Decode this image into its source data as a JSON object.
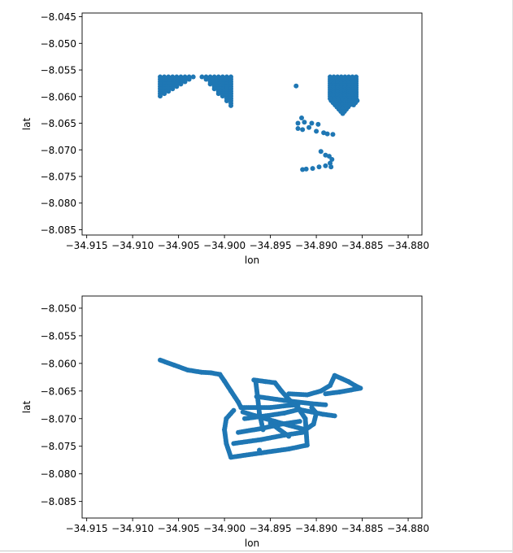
{
  "colors": {
    "marker": "#1f77b4",
    "axis": "#000000",
    "background": "#ffffff"
  },
  "chart_data": [
    {
      "type": "scatter",
      "title": "",
      "xlabel": "lon",
      "ylabel": "lat",
      "xlim": [
        -34.9155,
        -34.8785
      ],
      "ylim": [
        -8.086,
        -8.0443
      ],
      "xticks": [
        -34.915,
        -34.91,
        -34.905,
        -34.9,
        -34.895,
        -34.89,
        -34.885,
        -34.88
      ],
      "xtick_labels": [
        "−34.915",
        "−34.910",
        "−34.905",
        "−34.900",
        "−34.895",
        "−34.890",
        "−34.885",
        "−34.880"
      ],
      "yticks": [
        -8.045,
        -8.05,
        -8.055,
        -8.06,
        -8.065,
        -8.07,
        -8.075,
        -8.08,
        -8.085
      ],
      "ytick_labels": [
        "−8.045",
        "−8.050",
        "−8.055",
        "−8.060",
        "−8.065",
        "−8.070",
        "−8.075",
        "−8.080",
        "−8.085"
      ],
      "clusters": [
        {
          "kind": "triangle_grid",
          "corner_right_angle": [
            -34.907,
            -8.0563
          ],
          "x_extent": [
            -34.907,
            -34.9033
          ],
          "y_extent": [
            -8.06,
            -8.0563
          ]
        },
        {
          "kind": "triangle_grid",
          "corner_right_angle": [
            -34.8993,
            -8.0563
          ],
          "x_extent": [
            -34.9025,
            -34.8993
          ],
          "y_extent": [
            -8.0618,
            -8.0563
          ]
        },
        {
          "kind": "grid_with_taper",
          "x_extent": [
            -34.8885,
            -34.8853
          ],
          "y_extent": [
            -8.064,
            -8.0563
          ]
        }
      ],
      "points": [
        [
          -34.8922,
          -8.058
        ],
        [
          -34.8916,
          -8.064
        ],
        [
          -34.892,
          -8.065
        ],
        [
          -34.8913,
          -8.0648
        ],
        [
          -34.8905,
          -8.065
        ],
        [
          -34.8898,
          -8.0652
        ],
        [
          -34.892,
          -8.066
        ],
        [
          -34.8915,
          -8.0662
        ],
        [
          -34.8908,
          -8.0658
        ],
        [
          -34.89,
          -8.0665
        ],
        [
          -34.8892,
          -8.0668
        ],
        [
          -34.8888,
          -8.067
        ],
        [
          -34.8882,
          -8.0671
        ],
        [
          -34.8895,
          -8.0703
        ],
        [
          -34.889,
          -8.071
        ],
        [
          -34.8886,
          -8.0712
        ],
        [
          -34.8883,
          -8.0718
        ],
        [
          -34.8885,
          -8.0725
        ],
        [
          -34.8884,
          -8.0732
        ],
        [
          -34.889,
          -8.073
        ],
        [
          -34.8897,
          -8.0732
        ],
        [
          -34.8904,
          -8.0735
        ],
        [
          -34.8911,
          -8.0736
        ],
        [
          -34.8915,
          -8.0737
        ]
      ]
    },
    {
      "type": "scatter",
      "title": "",
      "xlabel": "lon",
      "ylabel": "lat",
      "xlim": [
        -34.9155,
        -34.8785
      ],
      "ylim": [
        -8.088,
        -8.0478
      ],
      "xticks": [
        -34.915,
        -34.91,
        -34.905,
        -34.9,
        -34.895,
        -34.89,
        -34.885,
        -34.88
      ],
      "xtick_labels": [
        "−34.915",
        "−34.910",
        "−34.905",
        "−34.900",
        "−34.895",
        "−34.890",
        "−34.885",
        "−34.880"
      ],
      "yticks": [
        -8.05,
        -8.055,
        -8.06,
        -8.065,
        -8.07,
        -8.075,
        -8.08,
        -8.085
      ],
      "ytick_labels": [
        "−8.050",
        "−8.055",
        "−8.060",
        "−8.065",
        "−8.070",
        "−8.075",
        "−8.080",
        "−8.085"
      ],
      "tracks": [
        [
          [
            -34.907,
            -8.0594
          ],
          [
            -34.9055,
            -8.0603
          ],
          [
            -34.904,
            -8.0612
          ],
          [
            -34.9025,
            -8.0616
          ],
          [
            -34.9015,
            -8.0617
          ],
          [
            -34.9005,
            -8.062
          ],
          [
            -34.9,
            -8.0632
          ],
          [
            -34.8993,
            -8.065
          ],
          [
            -34.8985,
            -8.067
          ],
          [
            -34.8982,
            -8.068
          ]
        ],
        [
          [
            -34.8982,
            -8.068
          ],
          [
            -34.895,
            -8.068
          ],
          [
            -34.893,
            -8.0676
          ],
          [
            -34.892,
            -8.0675
          ]
        ],
        [
          [
            -34.899,
            -8.0685
          ],
          [
            -34.8998,
            -8.07
          ],
          [
            -34.9,
            -8.072
          ],
          [
            -34.8998,
            -8.0745
          ],
          [
            -34.8993,
            -8.077
          ]
        ],
        [
          [
            -34.8993,
            -8.077
          ],
          [
            -34.896,
            -8.0762
          ],
          [
            -34.893,
            -8.0755
          ],
          [
            -34.891,
            -8.0748
          ]
        ],
        [
          [
            -34.899,
            -8.0745
          ],
          [
            -34.896,
            -8.0738
          ],
          [
            -34.8935,
            -8.073
          ],
          [
            -34.8915,
            -8.0725
          ]
        ],
        [
          [
            -34.8985,
            -8.0725
          ],
          [
            -34.896,
            -8.0718
          ],
          [
            -34.8938,
            -8.071
          ],
          [
            -34.8918,
            -8.0705
          ]
        ],
        [
          [
            -34.8978,
            -8.07
          ],
          [
            -34.8955,
            -8.0695
          ],
          [
            -34.8935,
            -8.069
          ],
          [
            -34.8918,
            -8.0683
          ]
        ],
        [
          [
            -34.8968,
            -8.063
          ],
          [
            -34.8955,
            -8.0633
          ],
          [
            -34.8945,
            -8.0635
          ]
        ],
        [
          [
            -34.8966,
            -8.0632
          ],
          [
            -34.8964,
            -8.066
          ],
          [
            -34.8962,
            -8.069
          ],
          [
            -34.8958,
            -8.072
          ]
        ],
        [
          [
            -34.8945,
            -8.0635
          ],
          [
            -34.8938,
            -8.065
          ],
          [
            -34.893,
            -8.0665
          ],
          [
            -34.892,
            -8.068
          ],
          [
            -34.8912,
            -8.07
          ],
          [
            -34.891,
            -8.0748
          ]
        ],
        [
          [
            -34.8965,
            -8.066
          ],
          [
            -34.8935,
            -8.0667
          ],
          [
            -34.8905,
            -8.0673
          ],
          [
            -34.889,
            -8.0675
          ]
        ],
        [
          [
            -34.893,
            -8.0655
          ],
          [
            -34.891,
            -8.0657
          ],
          [
            -34.8895,
            -8.065
          ],
          [
            -34.8885,
            -8.064
          ],
          [
            -34.888,
            -8.0622
          ],
          [
            -34.8873,
            -8.0627
          ],
          [
            -34.8865,
            -8.0633
          ],
          [
            -34.8858,
            -8.064
          ],
          [
            -34.8852,
            -8.0645
          ],
          [
            -34.8862,
            -8.0648
          ],
          [
            -34.8875,
            -8.0652
          ],
          [
            -34.889,
            -8.0655
          ]
        ],
        [
          [
            -34.892,
            -8.0683
          ],
          [
            -34.8905,
            -8.0688
          ],
          [
            -34.8893,
            -8.0692
          ],
          [
            -34.888,
            -8.0695
          ]
        ],
        [
          [
            -34.898,
            -8.0688
          ],
          [
            -34.896,
            -8.0698
          ],
          [
            -34.8945,
            -8.0705
          ],
          [
            -34.893,
            -8.0712
          ],
          [
            -34.8912,
            -8.072
          ],
          [
            -34.8903,
            -8.071
          ],
          [
            -34.89,
            -8.069
          ],
          [
            -34.8905,
            -8.068
          ]
        ],
        [
          [
            -34.895,
            -8.0708
          ],
          [
            -34.894,
            -8.072
          ],
          [
            -34.893,
            -8.0732
          ]
        ]
      ],
      "points": [
        [
          -34.8962,
          -8.0757
        ]
      ]
    }
  ]
}
